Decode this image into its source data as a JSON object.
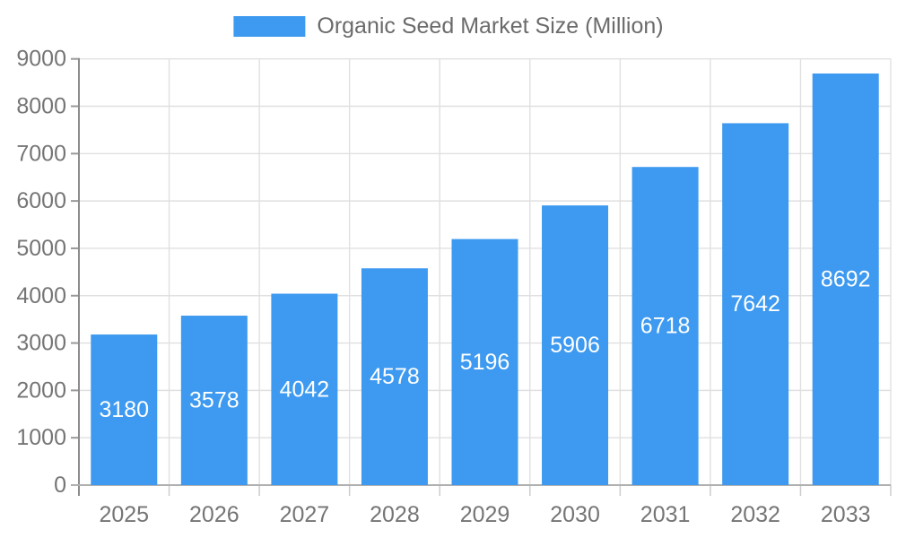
{
  "chart_data": {
    "type": "bar",
    "title": "Organic Seed Market Size (Million)",
    "categories": [
      "2025",
      "2026",
      "2027",
      "2028",
      "2029",
      "2030",
      "2031",
      "2032",
      "2033"
    ],
    "values": [
      3180,
      3578,
      4042,
      4578,
      5196,
      5906,
      6718,
      7642,
      8692
    ],
    "xlabel": "",
    "ylabel": "",
    "ylim": [
      0,
      9000
    ],
    "ytick_step": 1000,
    "grid": true,
    "legend_position": "top-center",
    "value_labels": "inside-center",
    "colors": {
      "bar": "#3d9af0",
      "bar_value_text": "#ffffff",
      "axis_text": "#757575",
      "legend_text": "#6b6b6b",
      "gridline": "#e0e0e0",
      "y_axis_line": "#8c8c8c",
      "x_axis_line": "#b0b0b0",
      "boundary_tick": "#cccccc",
      "y_tick": "#999999",
      "background": "#ffffff"
    }
  }
}
